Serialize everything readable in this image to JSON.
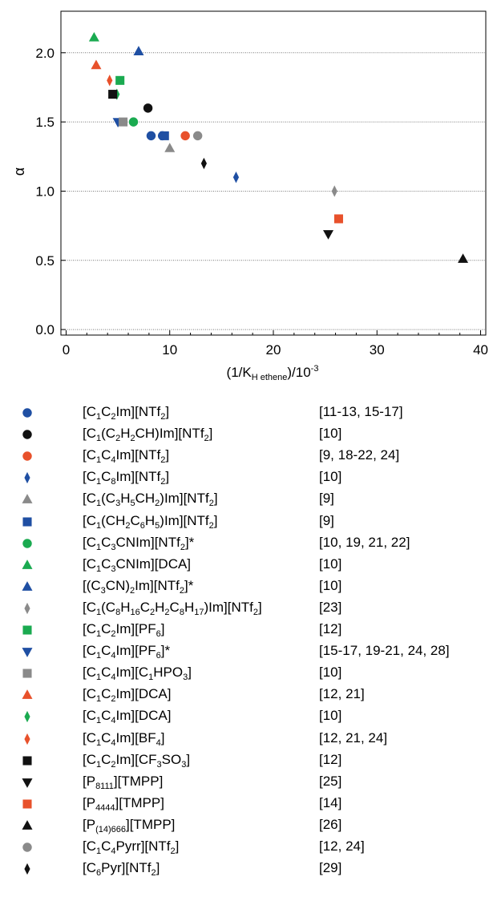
{
  "chart_data": {
    "type": "scatter",
    "ylabel": "α",
    "xlabel_parts": {
      "pre": "(1/K",
      "sub": "H ethene",
      "mid": ")/10",
      "sup": "-3"
    },
    "xlim": [
      -0.5,
      40.5
    ],
    "ylim": [
      -0.04,
      2.3
    ],
    "xticks": [
      0,
      10,
      20,
      30,
      40
    ],
    "yticks": [
      0.0,
      0.5,
      1.0,
      1.5,
      2.0
    ],
    "ytick_labels": [
      "0.0",
      "0.5",
      "1.0",
      "1.5",
      "2.0"
    ],
    "grid": "horizontal dotted",
    "legend_placement": "below",
    "series": [
      {
        "id": "c1c2im-ntf2",
        "marker": "circle",
        "color": "#1f4fa3",
        "label": [
          [
            "t",
            "[C"
          ],
          [
            "s",
            "1"
          ],
          [
            "t",
            "C"
          ],
          [
            "s",
            "2"
          ],
          [
            "t",
            "Im][NTf"
          ],
          [
            "s",
            "2"
          ],
          [
            "t",
            "]"
          ]
        ],
        "ref": "[11-13, 15-17]",
        "points": [
          [
            8.2,
            1.4
          ],
          [
            9.3,
            1.4
          ]
        ]
      },
      {
        "id": "c1-c2h2ch-im-ntf2",
        "marker": "circle",
        "color": "#111111",
        "label": [
          [
            "t",
            "[C"
          ],
          [
            "s",
            "1"
          ],
          [
            "t",
            "(C"
          ],
          [
            "s",
            "2"
          ],
          [
            "t",
            "H"
          ],
          [
            "s",
            "2"
          ],
          [
            "t",
            "CH)Im][NTf"
          ],
          [
            "s",
            "2"
          ],
          [
            "t",
            "]"
          ]
        ],
        "ref": "[10]",
        "points": [
          [
            7.9,
            1.6
          ]
        ]
      },
      {
        "id": "c1c4im-ntf2",
        "marker": "circle",
        "color": "#e8512b",
        "label": [
          [
            "t",
            "[C"
          ],
          [
            "s",
            "1"
          ],
          [
            "t",
            "C"
          ],
          [
            "s",
            "4"
          ],
          [
            "t",
            "Im][NTf"
          ],
          [
            "s",
            "2"
          ],
          [
            "t",
            "]"
          ]
        ],
        "ref": "[9, 18-22, 24]",
        "points": [
          [
            11.5,
            1.4
          ]
        ]
      },
      {
        "id": "c1c8im-ntf2",
        "marker": "diamond",
        "color": "#1f4fa3",
        "label": [
          [
            "t",
            "[C"
          ],
          [
            "s",
            "1"
          ],
          [
            "t",
            "C"
          ],
          [
            "s",
            "8"
          ],
          [
            "t",
            "Im][NTf"
          ],
          [
            "s",
            "2"
          ],
          [
            "t",
            "]"
          ]
        ],
        "ref": "[10]",
        "points": [
          [
            16.4,
            1.1
          ]
        ]
      },
      {
        "id": "c1-c3h5ch2-im-ntf2",
        "marker": "triangle-up",
        "color": "#8a8a8a",
        "label": [
          [
            "t",
            "[C"
          ],
          [
            "s",
            "1"
          ],
          [
            "t",
            "(C"
          ],
          [
            "s",
            "3"
          ],
          [
            "t",
            "H"
          ],
          [
            "s",
            "5"
          ],
          [
            "t",
            "CH"
          ],
          [
            "s",
            "2"
          ],
          [
            "t",
            ")Im][NTf"
          ],
          [
            "s",
            "2"
          ],
          [
            "t",
            "]"
          ]
        ],
        "ref": "[9]",
        "points": [
          [
            10.0,
            1.31
          ]
        ]
      },
      {
        "id": "c1-ch2c6h5-im-ntf2",
        "marker": "square",
        "color": "#1f4fa3",
        "label": [
          [
            "t",
            "[C"
          ],
          [
            "s",
            "1"
          ],
          [
            "t",
            "(CH"
          ],
          [
            "s",
            "2"
          ],
          [
            "t",
            "C"
          ],
          [
            "s",
            "6"
          ],
          [
            "t",
            "H"
          ],
          [
            "s",
            "5"
          ],
          [
            "t",
            ")Im][NTf"
          ],
          [
            "s",
            "2"
          ],
          [
            "t",
            "]"
          ]
        ],
        "ref": "[9]",
        "points": [
          [
            9.5,
            1.4
          ]
        ]
      },
      {
        "id": "c1c3cnim-ntf2",
        "marker": "circle",
        "color": "#1aaa50",
        "label": [
          [
            "t",
            "[C"
          ],
          [
            "s",
            "1"
          ],
          [
            "t",
            "C"
          ],
          [
            "s",
            "3"
          ],
          [
            "t",
            "CNIm][NTf"
          ],
          [
            "s",
            "2"
          ],
          [
            "t",
            "]*"
          ]
        ],
        "ref": "[10, 19, 21, 22]",
        "points": [
          [
            6.5,
            1.5
          ]
        ]
      },
      {
        "id": "c1c3cnim-dca",
        "marker": "triangle-up",
        "color": "#1aaa50",
        "label": [
          [
            "t",
            "[C"
          ],
          [
            "s",
            "1"
          ],
          [
            "t",
            "C"
          ],
          [
            "s",
            "3"
          ],
          [
            "t",
            "CNIm][DCA]"
          ]
        ],
        "ref": "[10]",
        "points": [
          [
            2.7,
            2.11
          ]
        ]
      },
      {
        "id": "c3cn2im-ntf2",
        "marker": "triangle-up",
        "color": "#1f4fa3",
        "label": [
          [
            "t",
            "[(C"
          ],
          [
            "s",
            "3"
          ],
          [
            "t",
            "CN)"
          ],
          [
            "s",
            "2"
          ],
          [
            "t",
            "Im][NTf"
          ],
          [
            "s",
            "2"
          ],
          [
            "t",
            "]*"
          ]
        ],
        "ref": "[10]",
        "points": [
          [
            7.0,
            2.01
          ]
        ]
      },
      {
        "id": "c1-c8h16c2h2c8h17-im-ntf2",
        "marker": "diamond",
        "color": "#8a8a8a",
        "label": [
          [
            "t",
            "[C"
          ],
          [
            "s",
            "1"
          ],
          [
            "t",
            "(C"
          ],
          [
            "s",
            "8"
          ],
          [
            "t",
            "H"
          ],
          [
            "s",
            "16"
          ],
          [
            "t",
            "C"
          ],
          [
            "s",
            "2"
          ],
          [
            "t",
            "H"
          ],
          [
            "s",
            "2"
          ],
          [
            "t",
            "C"
          ],
          [
            "s",
            "8"
          ],
          [
            "t",
            "H"
          ],
          [
            "s",
            "17"
          ],
          [
            "t",
            ")Im][NTf"
          ],
          [
            "s",
            "2"
          ],
          [
            "t",
            "]"
          ]
        ],
        "ref": "[23]",
        "points": [
          [
            25.9,
            1.0
          ]
        ]
      },
      {
        "id": "c1c2im-pf6",
        "marker": "square",
        "color": "#1aaa50",
        "label": [
          [
            "t",
            "[C"
          ],
          [
            "s",
            "1"
          ],
          [
            "t",
            "C"
          ],
          [
            "s",
            "2"
          ],
          [
            "t",
            "Im][PF"
          ],
          [
            "s",
            "6"
          ],
          [
            "t",
            "]"
          ]
        ],
        "ref": "[12]",
        "points": [
          [
            5.2,
            1.8
          ]
        ]
      },
      {
        "id": "c1c4im-pf6",
        "marker": "triangle-down",
        "color": "#1f4fa3",
        "label": [
          [
            "t",
            "[C"
          ],
          [
            "s",
            "1"
          ],
          [
            "t",
            "C"
          ],
          [
            "s",
            "4"
          ],
          [
            "t",
            "Im][PF"
          ],
          [
            "s",
            "6"
          ],
          [
            "t",
            "]*"
          ]
        ],
        "ref": "[15-17, 19-21, 24, 28]",
        "points": [
          [
            5.0,
            1.5
          ]
        ]
      },
      {
        "id": "c1c4im-c1hpo3",
        "marker": "square",
        "color": "#8a8a8a",
        "label": [
          [
            "t",
            "[C"
          ],
          [
            "s",
            "1"
          ],
          [
            "t",
            "C"
          ],
          [
            "s",
            "4"
          ],
          [
            "t",
            "Im][C"
          ],
          [
            "s",
            "1"
          ],
          [
            "t",
            "HPO"
          ],
          [
            "s",
            "3"
          ],
          [
            "t",
            "]"
          ]
        ],
        "ref": "[10]",
        "points": [
          [
            5.5,
            1.5
          ]
        ]
      },
      {
        "id": "c1c2im-dca",
        "marker": "triangle-up",
        "color": "#e8512b",
        "label": [
          [
            "t",
            "[C"
          ],
          [
            "s",
            "1"
          ],
          [
            "t",
            "C"
          ],
          [
            "s",
            "2"
          ],
          [
            "t",
            "Im][DCA]"
          ]
        ],
        "ref": "[12, 21]",
        "points": [
          [
            2.9,
            1.91
          ]
        ]
      },
      {
        "id": "c1c4im-dca",
        "marker": "diamond",
        "color": "#1aaa50",
        "label": [
          [
            "t",
            "[C"
          ],
          [
            "s",
            "1"
          ],
          [
            "t",
            "C"
          ],
          [
            "s",
            "4"
          ],
          [
            "t",
            "Im][DCA]"
          ]
        ],
        "ref": "[10]",
        "points": [
          [
            4.9,
            1.7
          ]
        ]
      },
      {
        "id": "c1c4im-bf4",
        "marker": "diamond",
        "color": "#e8512b",
        "label": [
          [
            "t",
            "[C"
          ],
          [
            "s",
            "1"
          ],
          [
            "t",
            "C"
          ],
          [
            "s",
            "4"
          ],
          [
            "t",
            "Im][BF"
          ],
          [
            "s",
            "4"
          ],
          [
            "t",
            "]"
          ]
        ],
        "ref": "[12, 21, 24]",
        "points": [
          [
            4.2,
            1.8
          ]
        ]
      },
      {
        "id": "c1c2im-cf3so3",
        "marker": "square",
        "color": "#111111",
        "label": [
          [
            "t",
            "[C"
          ],
          [
            "s",
            "1"
          ],
          [
            "t",
            "C"
          ],
          [
            "s",
            "2"
          ],
          [
            "t",
            "Im][CF"
          ],
          [
            "s",
            "3"
          ],
          [
            "t",
            "SO"
          ],
          [
            "s",
            "3"
          ],
          [
            "t",
            "]"
          ]
        ],
        "ref": "[12]",
        "points": [
          [
            4.5,
            1.7
          ]
        ]
      },
      {
        "id": "p8111-tmpp",
        "marker": "triangle-down",
        "color": "#111111",
        "label": [
          [
            "t",
            "[P"
          ],
          [
            "s",
            "8111"
          ],
          [
            "t",
            "][TMPP]"
          ]
        ],
        "ref": "[25]",
        "points": [
          [
            25.3,
            0.69
          ]
        ]
      },
      {
        "id": "p4444-tmpp",
        "marker": "square",
        "color": "#e8512b",
        "label": [
          [
            "t",
            "[P"
          ],
          [
            "s",
            "4444"
          ],
          [
            "t",
            "][TMPP]"
          ]
        ],
        "ref": "[14]",
        "points": [
          [
            26.3,
            0.8
          ]
        ]
      },
      {
        "id": "p14666-tmpp",
        "marker": "triangle-up",
        "color": "#111111",
        "label": [
          [
            "t",
            "[P"
          ],
          [
            "s",
            "(14)666"
          ],
          [
            "t",
            "][TMPP]"
          ]
        ],
        "ref": "[26]",
        "points": [
          [
            38.3,
            0.51
          ]
        ]
      },
      {
        "id": "c1c4pyrr-ntf2",
        "marker": "circle",
        "color": "#8a8a8a",
        "label": [
          [
            "t",
            "[C"
          ],
          [
            "s",
            "1"
          ],
          [
            "t",
            "C"
          ],
          [
            "s",
            "4"
          ],
          [
            "t",
            "Pyrr][NTf"
          ],
          [
            "s",
            "2"
          ],
          [
            "t",
            "]"
          ]
        ],
        "ref": "[12, 24]",
        "points": [
          [
            12.7,
            1.4
          ]
        ]
      },
      {
        "id": "c6pyr-ntf2",
        "marker": "diamond",
        "color": "#111111",
        "label": [
          [
            "t",
            "[C"
          ],
          [
            "s",
            "6"
          ],
          [
            "t",
            "Pyr][NTf"
          ],
          [
            "s",
            "2"
          ],
          [
            "t",
            "]"
          ]
        ],
        "ref": "[29]",
        "points": [
          [
            13.3,
            1.2
          ]
        ]
      }
    ]
  }
}
